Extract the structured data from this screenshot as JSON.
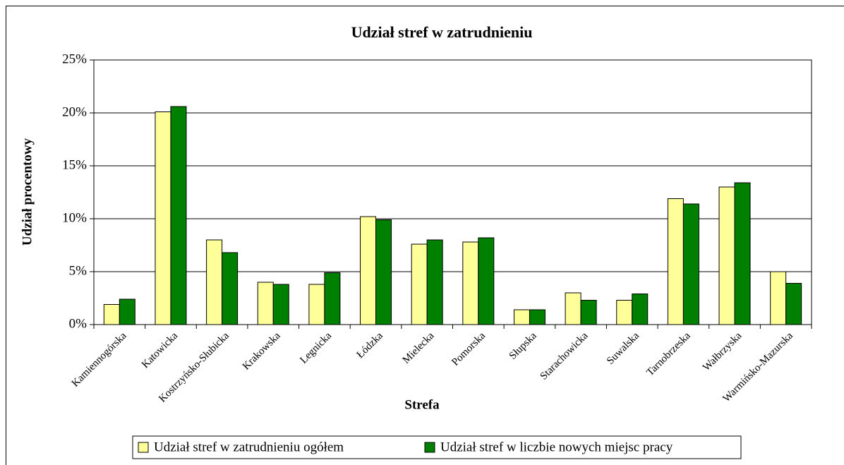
{
  "chart_data": {
    "type": "bar",
    "title": "Udział stref w zatrudnieniu",
    "x_label": "Strefa",
    "y_label": "Udział procentowy",
    "categories": [
      "Kamiennogórska",
      "Katowicka",
      "Kostrzyńsko-Słubicka",
      "Krakowska",
      "Legnicka",
      "Łódzka",
      "Mielecka",
      "Pomorska",
      "Słupska",
      "Starachowicka",
      "Suwalska",
      "Tarnobrzeska",
      "Wałbrzyska",
      "Warmińsko-Mazurska"
    ],
    "series": [
      {
        "name": "Udział stref w zatrudnieniu ogółem",
        "color": "#ffff99",
        "values": [
          1.9,
          20.1,
          8.0,
          4.0,
          3.8,
          10.2,
          7.6,
          7.8,
          1.4,
          3.0,
          2.3,
          11.9,
          13.0,
          5.0
        ]
      },
      {
        "name": "Udział stref w liczbie nowych miejsc pracy",
        "color": "#008000",
        "values": [
          2.4,
          20.6,
          6.8,
          3.8,
          4.9,
          9.9,
          8.0,
          8.2,
          1.4,
          2.3,
          2.9,
          11.4,
          13.4,
          3.9
        ]
      }
    ],
    "ylim": [
      0,
      25
    ],
    "yticks": [
      {
        "value": 0,
        "label": "0%"
      },
      {
        "value": 5,
        "label": "5%"
      },
      {
        "value": 10,
        "label": "10%"
      },
      {
        "value": 15,
        "label": "15%"
      },
      {
        "value": 20,
        "label": "20%"
      },
      {
        "value": 25,
        "label": "25%"
      }
    ],
    "grid": true,
    "legend": "bottom"
  }
}
